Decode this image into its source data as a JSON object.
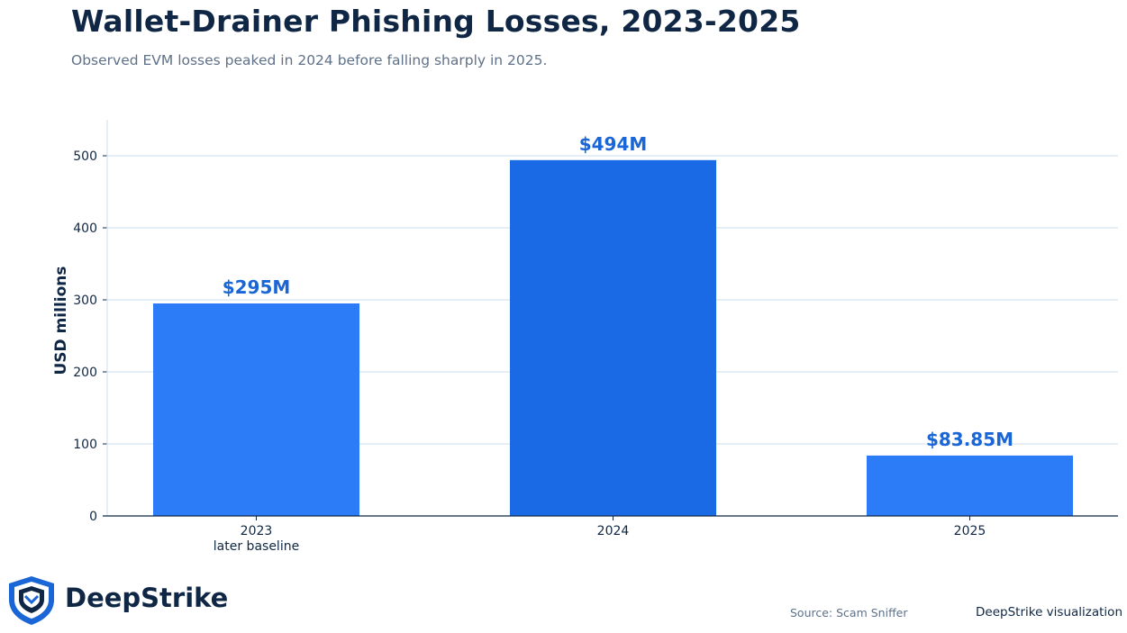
{
  "header": {
    "title": "Wallet-Drainer Phishing Losses, 2023-2025",
    "subtitle": "Observed EVM losses peaked in 2024 before falling sharply in 2025."
  },
  "chart_data": {
    "type": "bar",
    "title": "Wallet-Drainer Phishing Losses, 2023-2025",
    "subtitle": "Observed EVM losses peaked in 2024 before falling sharply in 2025.",
    "xlabel": "",
    "ylabel": "USD millions",
    "ylim": [
      0,
      550
    ],
    "yticks": [
      0,
      100,
      200,
      300,
      400,
      500
    ],
    "categories": [
      "2023",
      "2024",
      "2025"
    ],
    "category_sublabels": [
      "later baseline",
      "",
      ""
    ],
    "values": [
      295,
      494,
      83.85
    ],
    "data_labels": [
      "$295M",
      "$494M",
      "$83.85M"
    ],
    "bar_colors": [
      "#2b7cf6",
      "#1a6ae6",
      "#2b7cf6"
    ],
    "label_color": "#1a66d6",
    "grid": true,
    "grid_color": "#d6e4f0"
  },
  "footer": {
    "brand": "DeepStrike",
    "source": "Source: Scam Sniffer",
    "credit": "DeepStrike visualization"
  }
}
